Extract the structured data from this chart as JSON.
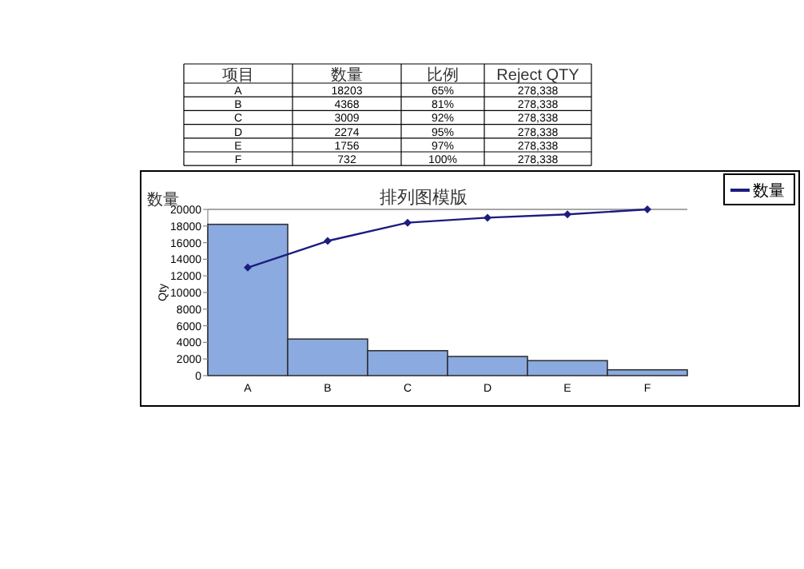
{
  "chart_data": [
    {
      "type": "other",
      "annotations": [
        "项目",
        "数量",
        "比例",
        "Reject QTY",
        "A",
        "18203",
        "65%",
        "278,338",
        "B",
        "4368",
        "81%",
        "278,338",
        "C",
        "3009",
        "92%",
        "278,338",
        "D",
        "2274",
        "95%",
        "278,338",
        "E",
        "1756",
        "97%",
        "278,338",
        "F",
        "732",
        "100%",
        "278,338"
      ]
    },
    {
      "type": "bar",
      "title": "排列图模版",
      "ylabel": "Qty",
      "subtitle": "数量",
      "categories": [
        "A",
        "B",
        "C",
        "D",
        "E",
        "F"
      ],
      "series": [
        {
          "type": "bar",
          "color": "#8aaae0",
          "values": [
            18200,
            4400,
            3000,
            2300,
            1800,
            700
          ]
        },
        {
          "type": "line",
          "name": "数量",
          "color": "#1c1c80",
          "values": [
            13000,
            16200,
            18400,
            19000,
            19400,
            20000
          ]
        }
      ],
      "ylim": [
        0,
        20000
      ],
      "yticks": [
        0,
        2000,
        4000,
        6000,
        8000,
        10000,
        12000,
        14000,
        16000,
        18000,
        20000
      ],
      "marker": "diamond",
      "legend": "top right"
    }
  ]
}
